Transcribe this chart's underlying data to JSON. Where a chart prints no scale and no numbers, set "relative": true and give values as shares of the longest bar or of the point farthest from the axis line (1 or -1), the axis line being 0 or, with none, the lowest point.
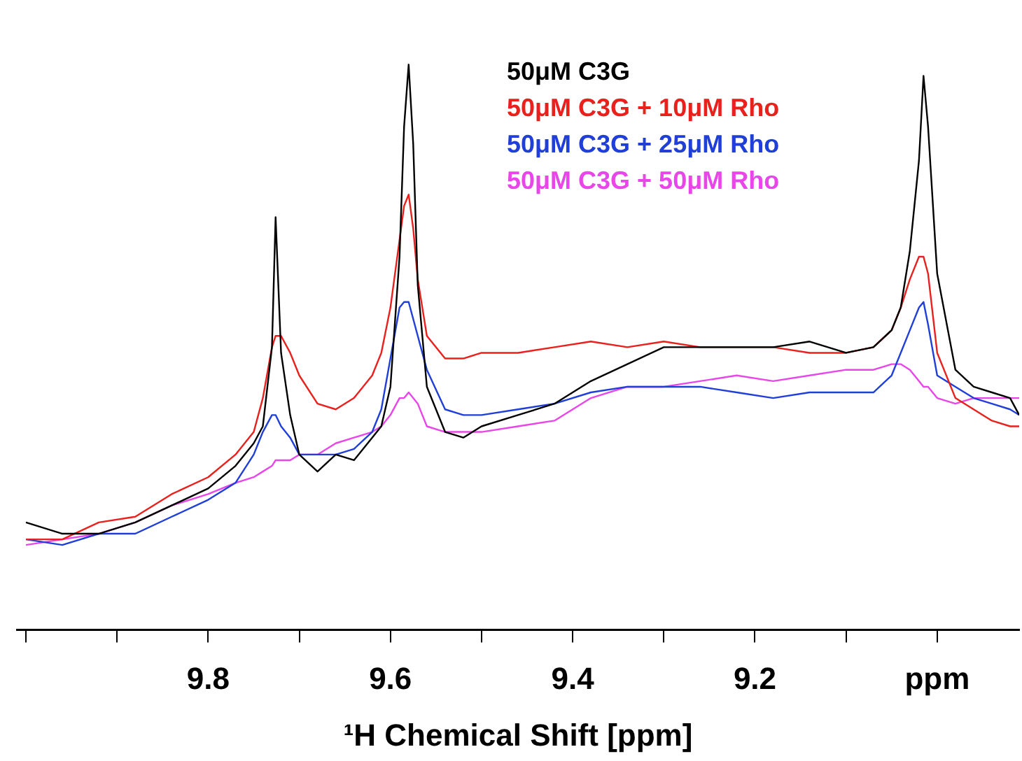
{
  "chart_data": {
    "type": "line",
    "relative": true,
    "xlabel": "¹H Chemical Shift [ppm]",
    "legend": "top right",
    "marker": "none",
    "grid": false,
    "xlim": [
      10.01,
      8.91
    ],
    "xticks": [
      {
        "value": 10.0,
        "label": null
      },
      {
        "value": 9.9,
        "label": null
      },
      9.8,
      {
        "value": 9.7,
        "label": null
      },
      9.6,
      {
        "value": 9.5,
        "label": null
      },
      9.4,
      {
        "value": 9.3,
        "label": null
      },
      9.2,
      {
        "value": 9.1,
        "label": null
      },
      {
        "value": 9.0,
        "label": "ppm"
      }
    ],
    "x": [
      10.0,
      9.96,
      9.92,
      9.88,
      9.84,
      9.8,
      9.77,
      9.75,
      9.74,
      9.73,
      9.726,
      9.72,
      9.71,
      9.7,
      9.68,
      9.66,
      9.64,
      9.62,
      9.61,
      9.6,
      9.59,
      9.585,
      9.58,
      9.575,
      9.57,
      9.56,
      9.54,
      9.52,
      9.5,
      9.46,
      9.42,
      9.38,
      9.34,
      9.3,
      9.26,
      9.22,
      9.18,
      9.14,
      9.1,
      9.07,
      9.05,
      9.04,
      9.03,
      9.02,
      9.015,
      9.01,
      9.0,
      8.98,
      8.96,
      8.94,
      8.92,
      8.91
    ],
    "series": [
      {
        "name": "50μM C3G",
        "color": "#000000",
        "values": [
          0.19,
          0.17,
          0.17,
          0.19,
          0.22,
          0.25,
          0.29,
          0.33,
          0.36,
          0.5,
          0.73,
          0.49,
          0.38,
          0.31,
          0.28,
          0.31,
          0.3,
          0.34,
          0.36,
          0.43,
          0.66,
          0.89,
          1.0,
          0.86,
          0.61,
          0.43,
          0.35,
          0.34,
          0.36,
          0.38,
          0.4,
          0.44,
          0.47,
          0.5,
          0.5,
          0.5,
          0.5,
          0.51,
          0.49,
          0.5,
          0.53,
          0.57,
          0.67,
          0.83,
          0.98,
          0.89,
          0.63,
          0.46,
          0.43,
          0.42,
          0.41,
          0.38
        ]
      },
      {
        "name": "50μM C3G + 10μM Rho",
        "color": "#e8211d",
        "values": [
          0.16,
          0.16,
          0.19,
          0.2,
          0.24,
          0.27,
          0.31,
          0.35,
          0.41,
          0.5,
          0.52,
          0.52,
          0.49,
          0.45,
          0.4,
          0.39,
          0.41,
          0.45,
          0.49,
          0.57,
          0.69,
          0.75,
          0.77,
          0.71,
          0.62,
          0.52,
          0.48,
          0.48,
          0.49,
          0.49,
          0.5,
          0.51,
          0.5,
          0.51,
          0.5,
          0.5,
          0.5,
          0.49,
          0.49,
          0.5,
          0.53,
          0.57,
          0.62,
          0.66,
          0.66,
          0.63,
          0.49,
          0.41,
          0.39,
          0.37,
          0.36,
          0.36
        ]
      },
      {
        "name": "50μM C3G + 25μM Rho",
        "color": "#1f3fd8",
        "values": [
          0.16,
          0.15,
          0.17,
          0.17,
          0.2,
          0.23,
          0.26,
          0.31,
          0.35,
          0.38,
          0.38,
          0.36,
          0.34,
          0.31,
          0.31,
          0.31,
          0.32,
          0.35,
          0.39,
          0.48,
          0.57,
          0.58,
          0.58,
          0.55,
          0.52,
          0.46,
          0.39,
          0.38,
          0.38,
          0.39,
          0.4,
          0.42,
          0.43,
          0.43,
          0.43,
          0.42,
          0.41,
          0.42,
          0.42,
          0.42,
          0.45,
          0.49,
          0.53,
          0.57,
          0.58,
          0.54,
          0.45,
          0.43,
          0.41,
          0.4,
          0.39,
          0.38
        ]
      },
      {
        "name": "50μM C3G + 50μM Rho",
        "color": "#e846e8",
        "values": [
          0.15,
          0.16,
          0.17,
          0.19,
          0.22,
          0.24,
          0.26,
          0.27,
          0.28,
          0.29,
          0.3,
          0.3,
          0.3,
          0.31,
          0.31,
          0.33,
          0.34,
          0.35,
          0.36,
          0.38,
          0.41,
          0.41,
          0.42,
          0.41,
          0.4,
          0.36,
          0.35,
          0.35,
          0.35,
          0.36,
          0.37,
          0.41,
          0.43,
          0.43,
          0.44,
          0.45,
          0.44,
          0.45,
          0.46,
          0.46,
          0.47,
          0.47,
          0.46,
          0.44,
          0.43,
          0.43,
          0.41,
          0.4,
          0.41,
          0.41,
          0.41,
          0.41
        ]
      }
    ]
  }
}
